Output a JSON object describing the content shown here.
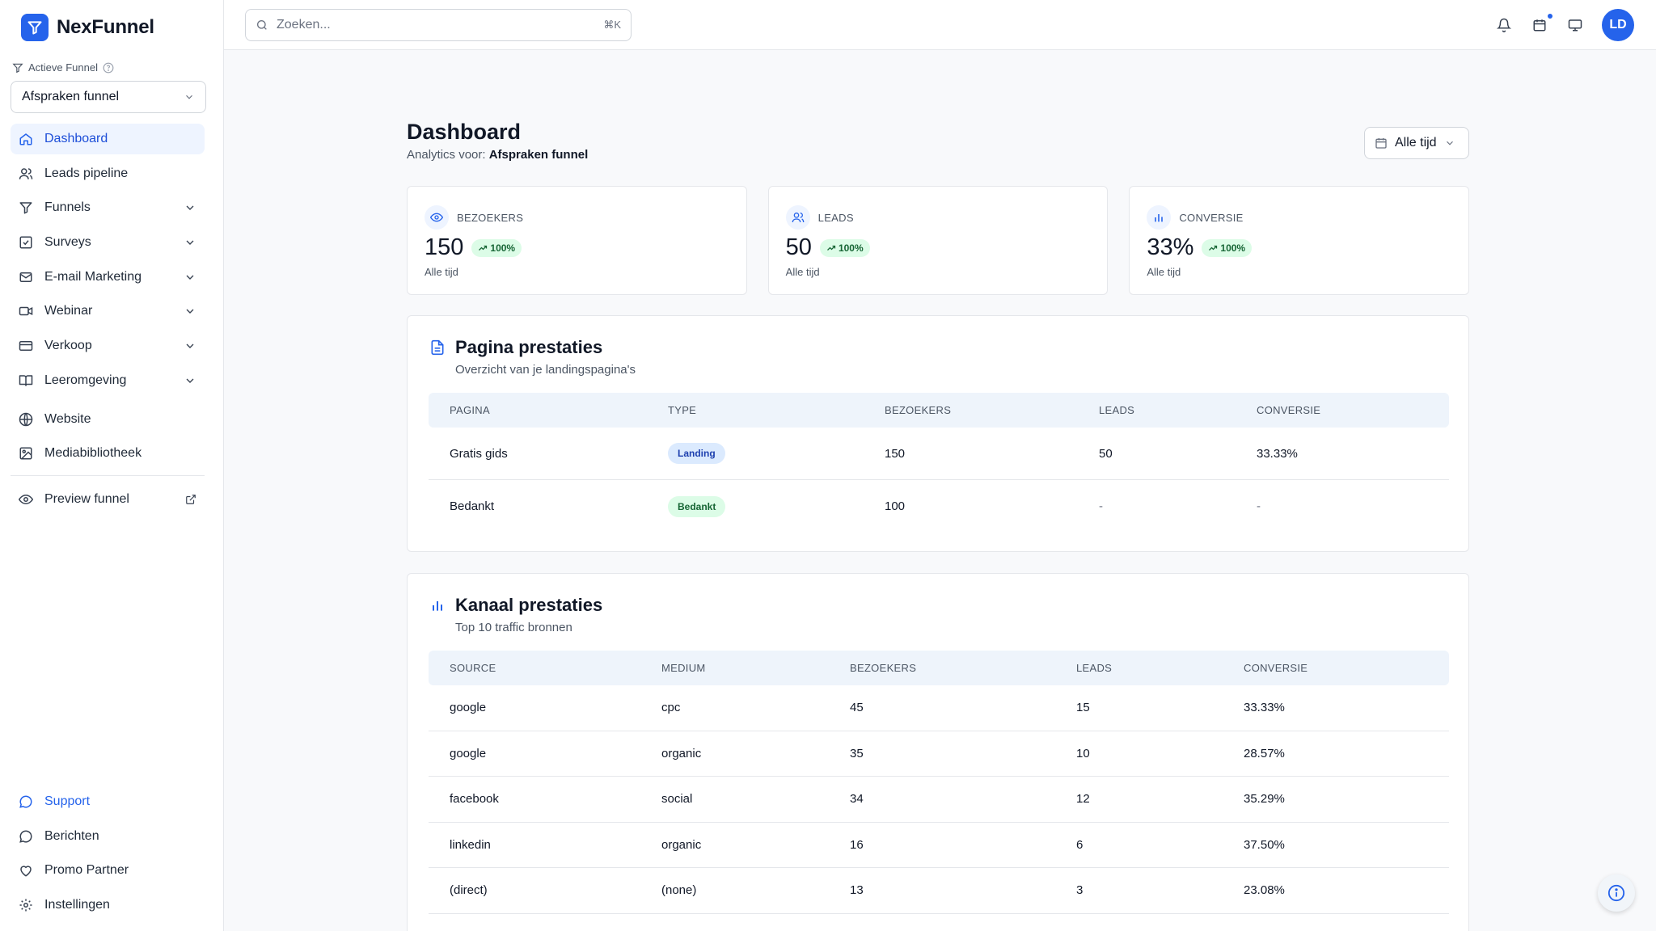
{
  "app": {
    "name": "NexFunnel"
  },
  "sidebar": {
    "active_funnel_label": "Actieve Funnel",
    "funnel_select_value": "Afspraken funnel",
    "items": [
      {
        "label": "Dashboard",
        "icon": "home-icon"
      },
      {
        "label": "Leads pipeline",
        "icon": "users-icon"
      },
      {
        "label": "Funnels",
        "icon": "funnel-icon"
      },
      {
        "label": "Surveys",
        "icon": "checkbox-icon"
      },
      {
        "label": "E-mail Marketing",
        "icon": "mail-icon"
      },
      {
        "label": "Webinar",
        "icon": "video-icon"
      },
      {
        "label": "Verkoop",
        "icon": "credit-card-icon"
      },
      {
        "label": "Leeromgeving",
        "icon": "book-icon"
      },
      {
        "label": "Website",
        "icon": "globe-icon"
      },
      {
        "label": "Mediabibliotheek",
        "icon": "image-icon"
      },
      {
        "label": "Preview funnel",
        "icon": "eye-icon"
      }
    ],
    "bottom_items": [
      {
        "label": "Support",
        "icon": "chat-icon"
      },
      {
        "label": "Berichten",
        "icon": "message-icon"
      },
      {
        "label": "Promo Partner",
        "icon": "heart-icon"
      },
      {
        "label": "Instellingen",
        "icon": "gear-icon"
      }
    ]
  },
  "topbar": {
    "search_placeholder": "Zoeken...",
    "search_shortcut": "⌘K",
    "avatar_initials": "LD"
  },
  "header": {
    "title": "Dashboard",
    "subtitle_prefix": "Analytics voor:",
    "subtitle_funnel": "Afspraken funnel",
    "period": "Alle tijd"
  },
  "stats": [
    {
      "label": "BEZOEKERS",
      "value": "150",
      "change": "100%",
      "period": "Alle tijd",
      "icon": "eye-icon"
    },
    {
      "label": "LEADS",
      "value": "50",
      "change": "100%",
      "period": "Alle tijd",
      "icon": "users-icon"
    },
    {
      "label": "CONVERSIE",
      "value": "33%",
      "change": "100%",
      "period": "Alle tijd",
      "icon": "bar-chart-icon"
    }
  ],
  "pages": {
    "title": "Pagina prestaties",
    "subtitle": "Overzicht van je landingspagina's",
    "columns": [
      "PAGINA",
      "TYPE",
      "BEZOEKERS",
      "LEADS",
      "CONVERSIE"
    ],
    "rows": [
      {
        "pagina": "Gratis gids",
        "type": "Landing",
        "bezoekers": "150",
        "leads": "50",
        "conversie": "33.33%"
      },
      {
        "pagina": "Bedankt",
        "type": "Bedankt",
        "bezoekers": "100",
        "leads": "-",
        "conversie": "-"
      }
    ]
  },
  "channels": {
    "title": "Kanaal prestaties",
    "subtitle": "Top 10 traffic bronnen",
    "columns": [
      "SOURCE",
      "MEDIUM",
      "BEZOEKERS",
      "LEADS",
      "CONVERSIE"
    ],
    "rows": [
      {
        "source": "google",
        "medium": "cpc",
        "bezoekers": "45",
        "leads": "15",
        "conversie": "33.33%"
      },
      {
        "source": "google",
        "medium": "organic",
        "bezoekers": "35",
        "leads": "10",
        "conversie": "28.57%"
      },
      {
        "source": "facebook",
        "medium": "social",
        "bezoekers": "34",
        "leads": "12",
        "conversie": "35.29%"
      },
      {
        "source": "linkedin",
        "medium": "organic",
        "bezoekers": "16",
        "leads": "6",
        "conversie": "37.50%"
      },
      {
        "source": "(direct)",
        "medium": "(none)",
        "bezoekers": "13",
        "leads": "3",
        "conversie": "23.08%"
      }
    ]
  },
  "colors": {
    "accent": "#2563eb",
    "success_bg": "#dcfce7",
    "success_text": "#166534"
  }
}
